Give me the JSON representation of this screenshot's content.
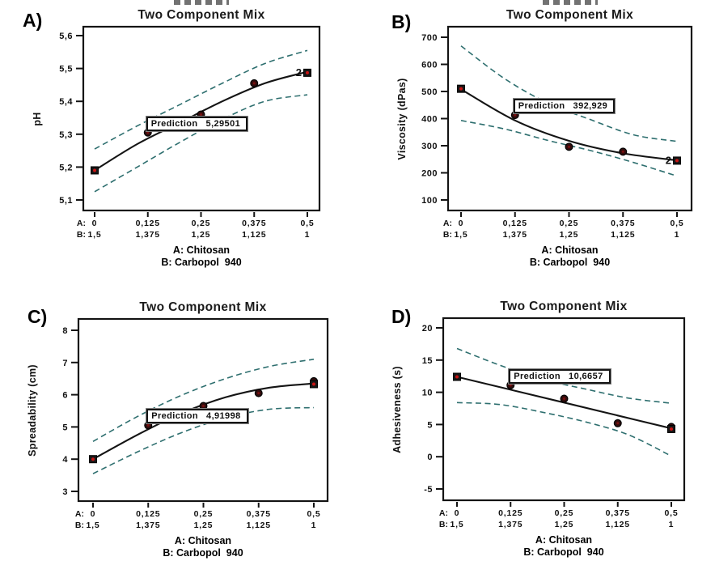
{
  "colors": {
    "background": "#ffffff",
    "confidence_band": "#2e6f6f",
    "mean_line": "#141414",
    "marker_fill": "#330d0d",
    "marker_center_red": "#c81414",
    "plot_border": "#141414",
    "text": "#111111"
  },
  "chart_data": [
    {
      "id": "A",
      "type": "line",
      "panel_label": "A)",
      "title": "Two Component Mix",
      "ylabel": "pH",
      "ylim": [
        5.05,
        5.65
      ],
      "yticks": {
        "values": [
          5.1,
          5.2,
          5.3,
          5.4,
          5.5,
          5.6
        ],
        "labels": [
          "5,1",
          "5,2",
          "5,3",
          "5,4",
          "5,5",
          "5,6"
        ]
      },
      "xticks": {
        "values": [
          0,
          0.125,
          0.25,
          0.375,
          0.5
        ],
        "row_a": {
          "prefix": "A:",
          "labels": [
            "0",
            "0,125",
            "0,25",
            "0,375",
            "0,5"
          ]
        },
        "row_b": {
          "prefix": "B:",
          "labels": [
            "1,5",
            "1,375",
            "1,25",
            "1,125",
            "1"
          ]
        }
      },
      "footnotes": [
        "A: Chitosan",
        "B: Carbopol  940"
      ],
      "prediction": {
        "label": "Prediction",
        "value": "5,29501",
        "anchor_x": 0.125,
        "anchor_y": 5.305
      },
      "series": [
        {
          "name": "upper_ci",
          "style": "dashed",
          "x": [
            0,
            0.1,
            0.2,
            0.3,
            0.4,
            0.5
          ],
          "y": [
            5.255,
            5.325,
            5.39,
            5.455,
            5.515,
            5.555
          ]
        },
        {
          "name": "mean",
          "style": "solid",
          "x": [
            0,
            0.1,
            0.2,
            0.3,
            0.4,
            0.5
          ],
          "y": [
            5.19,
            5.27,
            5.335,
            5.4,
            5.455,
            5.49
          ]
        },
        {
          "name": "lower_ci",
          "style": "dashed",
          "x": [
            0,
            0.1,
            0.2,
            0.3,
            0.4,
            0.5
          ],
          "y": [
            5.125,
            5.2,
            5.275,
            5.345,
            5.4,
            5.42
          ]
        }
      ],
      "points": [
        {
          "x": 0,
          "y": 5.19,
          "marker": "square"
        },
        {
          "x": 0.125,
          "y": 5.305,
          "marker": "circle"
        },
        {
          "x": 0.25,
          "y": 5.36,
          "marker": "circle"
        },
        {
          "x": 0.375,
          "y": 5.455,
          "marker": "circle"
        },
        {
          "x": 0.5,
          "y": 5.487,
          "marker": "square",
          "annotation": "2"
        }
      ]
    },
    {
      "id": "B",
      "type": "line",
      "panel_label": "B)",
      "title": "Two Component Mix",
      "ylabel": "Viscosity (dPas)",
      "ylim": [
        60,
        730
      ],
      "yticks": {
        "values": [
          100,
          200,
          300,
          400,
          500,
          600,
          700
        ],
        "labels": [
          "100",
          "200",
          "300",
          "400",
          "500",
          "600",
          "700"
        ]
      },
      "xticks": {
        "values": [
          0,
          0.125,
          0.25,
          0.375,
          0.5
        ],
        "row_a": {
          "prefix": "A:",
          "labels": [
            "0",
            "0,125",
            "0,25",
            "0,375",
            "0,5"
          ]
        },
        "row_b": {
          "prefix": "B:",
          "labels": [
            "1,5",
            "1,375",
            "1,25",
            "1,125",
            "1"
          ]
        }
      },
      "footnotes": [
        "A: Chitosan",
        "B: Carbopol  940"
      ],
      "prediction": {
        "label": "Prediction",
        "value": "392,929",
        "anchor_x": 0.125,
        "anchor_y": 413
      },
      "series": [
        {
          "name": "upper_ci",
          "style": "dashed",
          "x": [
            0,
            0.1,
            0.2,
            0.3,
            0.4,
            0.5
          ],
          "y": [
            668,
            548,
            458,
            396,
            340,
            316
          ]
        },
        {
          "name": "mean",
          "style": "solid",
          "x": [
            0,
            0.125,
            0.25,
            0.375,
            0.5
          ],
          "y": [
            508,
            393,
            318,
            272,
            246
          ]
        },
        {
          "name": "lower_ci",
          "style": "dashed",
          "x": [
            0,
            0.1,
            0.2,
            0.3,
            0.4,
            0.5
          ],
          "y": [
            393,
            362,
            320,
            282,
            238,
            188
          ]
        }
      ],
      "points": [
        {
          "x": 0,
          "y": 510,
          "marker": "square"
        },
        {
          "x": 0.125,
          "y": 413,
          "marker": "circle"
        },
        {
          "x": 0.25,
          "y": 296,
          "marker": "circle"
        },
        {
          "x": 0.375,
          "y": 278,
          "marker": "circle"
        },
        {
          "x": 0.5,
          "y": 245,
          "marker": "square",
          "annotation": "2"
        }
      ]
    },
    {
      "id": "C",
      "type": "line",
      "panel_label": "C)",
      "title": "Two Component Mix",
      "ylabel": "Spreadability (cm)",
      "ylim": [
        2.7,
        8.3
      ],
      "yticks": {
        "values": [
          3,
          4,
          5,
          6,
          7,
          8
        ],
        "labels": [
          "3",
          "4",
          "5",
          "6",
          "7",
          "8"
        ]
      },
      "xticks": {
        "values": [
          0,
          0.125,
          0.25,
          0.375,
          0.5
        ],
        "row_a": {
          "prefix": "A:",
          "labels": [
            "0",
            "0,125",
            "0,25",
            "0,375",
            "0,5"
          ]
        },
        "row_b": {
          "prefix": "B:",
          "labels": [
            "1,5",
            "1,375",
            "1,25",
            "1,125",
            "1"
          ]
        }
      },
      "footnotes": [
        "A: Chitosan",
        "B: Carbopol  940"
      ],
      "prediction": {
        "label": "Prediction",
        "value": "4,91998",
        "anchor_x": 0.125,
        "anchor_y": 5.05
      },
      "series": [
        {
          "name": "upper_ci",
          "style": "dashed",
          "x": [
            0,
            0.1,
            0.2,
            0.3,
            0.4,
            0.5
          ],
          "y": [
            4.55,
            5.32,
            5.98,
            6.5,
            6.88,
            7.1
          ]
        },
        {
          "name": "mean",
          "style": "solid",
          "x": [
            0,
            0.1,
            0.2,
            0.3,
            0.4,
            0.5
          ],
          "y": [
            4.0,
            4.75,
            5.42,
            5.92,
            6.22,
            6.35
          ]
        },
        {
          "name": "lower_ci",
          "style": "dashed",
          "x": [
            0,
            0.1,
            0.2,
            0.3,
            0.4,
            0.5
          ],
          "y": [
            3.55,
            4.22,
            4.82,
            5.28,
            5.55,
            5.6
          ]
        }
      ],
      "points": [
        {
          "x": 0,
          "y": 4.0,
          "marker": "square"
        },
        {
          "x": 0.125,
          "y": 5.05,
          "marker": "circle"
        },
        {
          "x": 0.25,
          "y": 5.65,
          "marker": "circle"
        },
        {
          "x": 0.375,
          "y": 6.05,
          "marker": "circle"
        },
        {
          "x": 0.5,
          "y": 6.42,
          "marker": "circle"
        },
        {
          "x": 0.5,
          "y": 6.33,
          "marker": "square"
        }
      ]
    },
    {
      "id": "D",
      "type": "line",
      "panel_label": "D)",
      "title": "Two Component Mix",
      "ylabel": "Adhesiveness (s)",
      "ylim": [
        -7,
        21
      ],
      "yticks": {
        "values": [
          -5,
          0,
          5,
          10,
          15,
          20
        ],
        "labels": [
          "-5",
          "0",
          "5",
          "10",
          "15",
          "20"
        ]
      },
      "xticks": {
        "values": [
          0,
          0.125,
          0.25,
          0.375,
          0.5
        ],
        "row_a": {
          "prefix": "A:",
          "labels": [
            "0",
            "0,125",
            "0,25",
            "0,375",
            "0,5"
          ]
        },
        "row_b": {
          "prefix": "B:",
          "labels": [
            "1,5",
            "1,375",
            "1,25",
            "1,125",
            "1"
          ]
        }
      },
      "footnotes": [
        "A: Chitosan",
        "B: Carbopol  940"
      ],
      "prediction": {
        "label": "Prediction",
        "value": "10,6657",
        "anchor_x": 0.125,
        "anchor_y": 11.1
      },
      "series": [
        {
          "name": "upper_ci",
          "style": "dashed",
          "x": [
            0,
            0.1,
            0.2,
            0.3,
            0.4,
            0.5
          ],
          "y": [
            16.8,
            14.2,
            12.0,
            10.5,
            9.1,
            8.3
          ]
        },
        {
          "name": "mean",
          "style": "solid",
          "x": [
            0,
            0.125,
            0.25,
            0.375,
            0.5
          ],
          "y": [
            12.4,
            10.4,
            8.4,
            6.4,
            4.4
          ]
        },
        {
          "name": "lower_ci",
          "style": "dashed",
          "x": [
            0,
            0.1,
            0.2,
            0.3,
            0.4,
            0.5
          ],
          "y": [
            8.4,
            8.1,
            6.9,
            5.4,
            3.4,
            0.1
          ]
        }
      ],
      "points": [
        {
          "x": 0,
          "y": 12.4,
          "marker": "square"
        },
        {
          "x": 0.125,
          "y": 11.1,
          "marker": "circle"
        },
        {
          "x": 0.25,
          "y": 9.0,
          "marker": "circle"
        },
        {
          "x": 0.375,
          "y": 5.2,
          "marker": "circle"
        },
        {
          "x": 0.5,
          "y": 4.62,
          "marker": "circle"
        },
        {
          "x": 0.5,
          "y": 4.3,
          "marker": "square"
        }
      ]
    }
  ]
}
